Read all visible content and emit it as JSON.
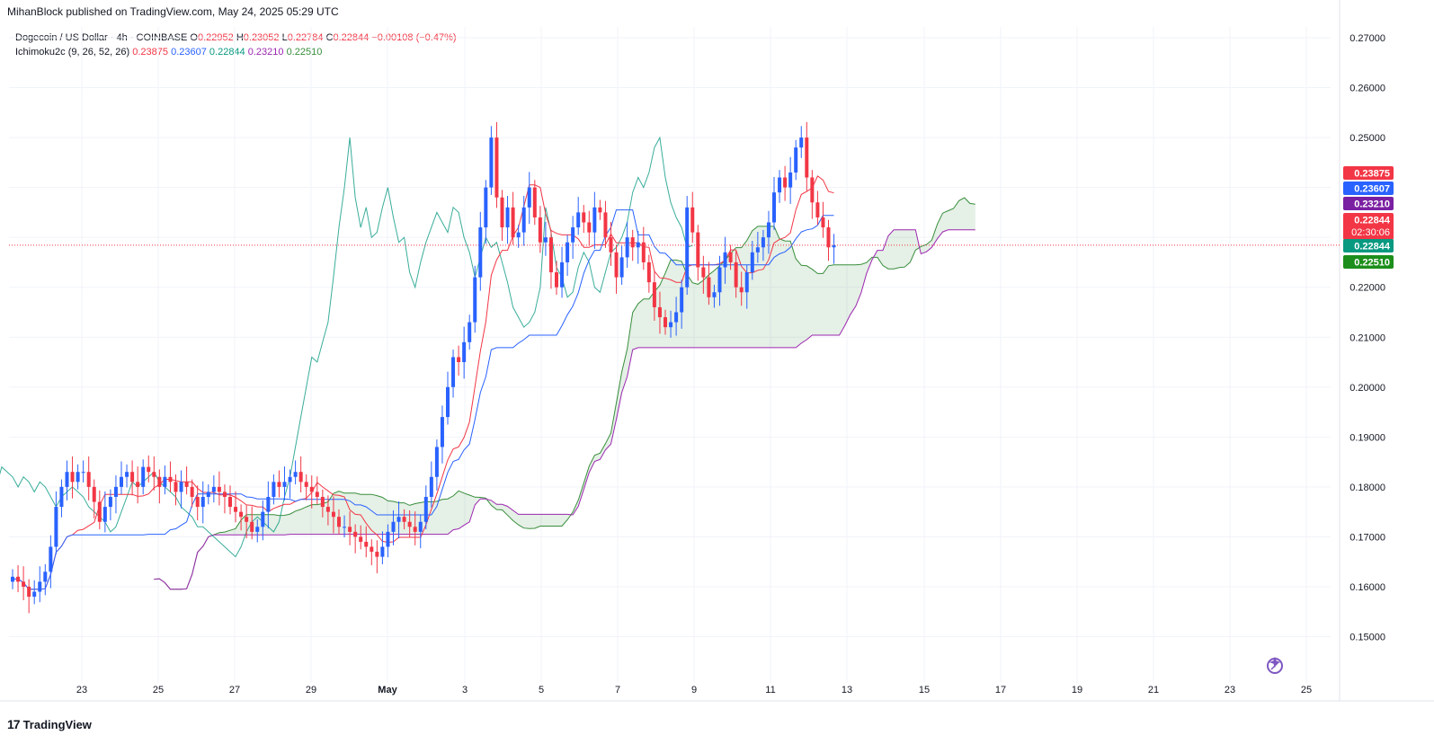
{
  "header": {
    "published_line": "MihanBlock published on TradingView.com, May 24, 2025 05:29 UTC"
  },
  "legend": {
    "symbol": "Dogecoin / US Dollar · 4h · COINBASE",
    "o_label": "O",
    "o": "0.22952",
    "h_label": "H",
    "h": "0.23052",
    "l_label": "L",
    "l": "0.22784",
    "c_label": "C",
    "c": "0.22844",
    "change": "−0.00108 (−0.47%)",
    "indicator": "Ichimoku2c (9, 26, 52, 26)",
    "ind_values": [
      "0.23875",
      "0.23607",
      "0.22844",
      "0.23210",
      "0.22510"
    ]
  },
  "footer": {
    "brand": "TradingView"
  },
  "price_tags": [
    {
      "label": "0.23875",
      "value": 0.23875,
      "color": "#f23645"
    },
    {
      "label": "0.23607",
      "value": 0.23607,
      "color": "#2962ff"
    },
    {
      "label": "0.23210",
      "value": 0.2321,
      "color": "#7b1fa2"
    },
    {
      "label": "0.22844",
      "value": 0.22844,
      "color": "#f23645",
      "sub": "02:30:06"
    },
    {
      "label": "0.22844",
      "value": 0.22844,
      "color": "#089981"
    },
    {
      "label": "0.22510",
      "value": 0.2251,
      "color": "#1b8e1b"
    }
  ],
  "chart_data": {
    "type": "candlestick",
    "y_ticks": [
      "0.15000",
      "0.16000",
      "0.17000",
      "0.18000",
      "0.19000",
      "0.20000",
      "0.21000",
      "0.22000",
      "0.23000",
      "0.24000",
      "0.25000",
      "0.26000",
      "0.27000"
    ],
    "x_ticks": [
      "23",
      "25",
      "27",
      "29",
      "May",
      "3",
      "5",
      "7",
      "9",
      "11",
      "13",
      "15",
      "17",
      "19",
      "21",
      "23",
      "25"
    ],
    "ylim": [
      0.1445,
      0.2745
    ],
    "last_price": 0.22844,
    "colors": {
      "up": "#2962ff",
      "down": "#f23645",
      "tenkan": "#f23645",
      "kijun": "#2962ff",
      "chikou": "#089981",
      "spanA": "#388e3c",
      "spanB": "#9c27b0",
      "cloud": "rgba(56,142,60,0.13)"
    },
    "closes": [
      0.162,
      0.161,
      0.16,
      0.158,
      0.159,
      0.161,
      0.163,
      0.168,
      0.176,
      0.18,
      0.183,
      0.181,
      0.183,
      0.183,
      0.18,
      0.177,
      0.173,
      0.176,
      0.178,
      0.18,
      0.182,
      0.183,
      0.181,
      0.18,
      0.184,
      0.183,
      0.182,
      0.18,
      0.182,
      0.181,
      0.179,
      0.181,
      0.18,
      0.178,
      0.176,
      0.178,
      0.179,
      0.18,
      0.179,
      0.178,
      0.176,
      0.175,
      0.174,
      0.173,
      0.171,
      0.172,
      0.175,
      0.178,
      0.181,
      0.18,
      0.181,
      0.182,
      0.183,
      0.181,
      0.18,
      0.179,
      0.178,
      0.176,
      0.175,
      0.174,
      0.172,
      0.172,
      0.171,
      0.17,
      0.169,
      0.168,
      0.167,
      0.166,
      0.168,
      0.171,
      0.173,
      0.174,
      0.173,
      0.172,
      0.171,
      0.173,
      0.178,
      0.182,
      0.188,
      0.194,
      0.2,
      0.206,
      0.205,
      0.209,
      0.213,
      0.222,
      0.232,
      0.24,
      0.25,
      0.238,
      0.232,
      0.236,
      0.23,
      0.231,
      0.236,
      0.24,
      0.234,
      0.229,
      0.23,
      0.223,
      0.22,
      0.225,
      0.229,
      0.232,
      0.235,
      0.233,
      0.231,
      0.236,
      0.235,
      0.23,
      0.227,
      0.222,
      0.226,
      0.23,
      0.228,
      0.229,
      0.225,
      0.221,
      0.216,
      0.214,
      0.212,
      0.213,
      0.215,
      0.22,
      0.236,
      0.231,
      0.224,
      0.222,
      0.218,
      0.219,
      0.224,
      0.227,
      0.225,
      0.22,
      0.219,
      0.223,
      0.227,
      0.228,
      0.23,
      0.233,
      0.239,
      0.242,
      0.24,
      0.243,
      0.248,
      0.25,
      0.242,
      0.237,
      0.234,
      0.232,
      0.228,
      0.2284
    ]
  }
}
